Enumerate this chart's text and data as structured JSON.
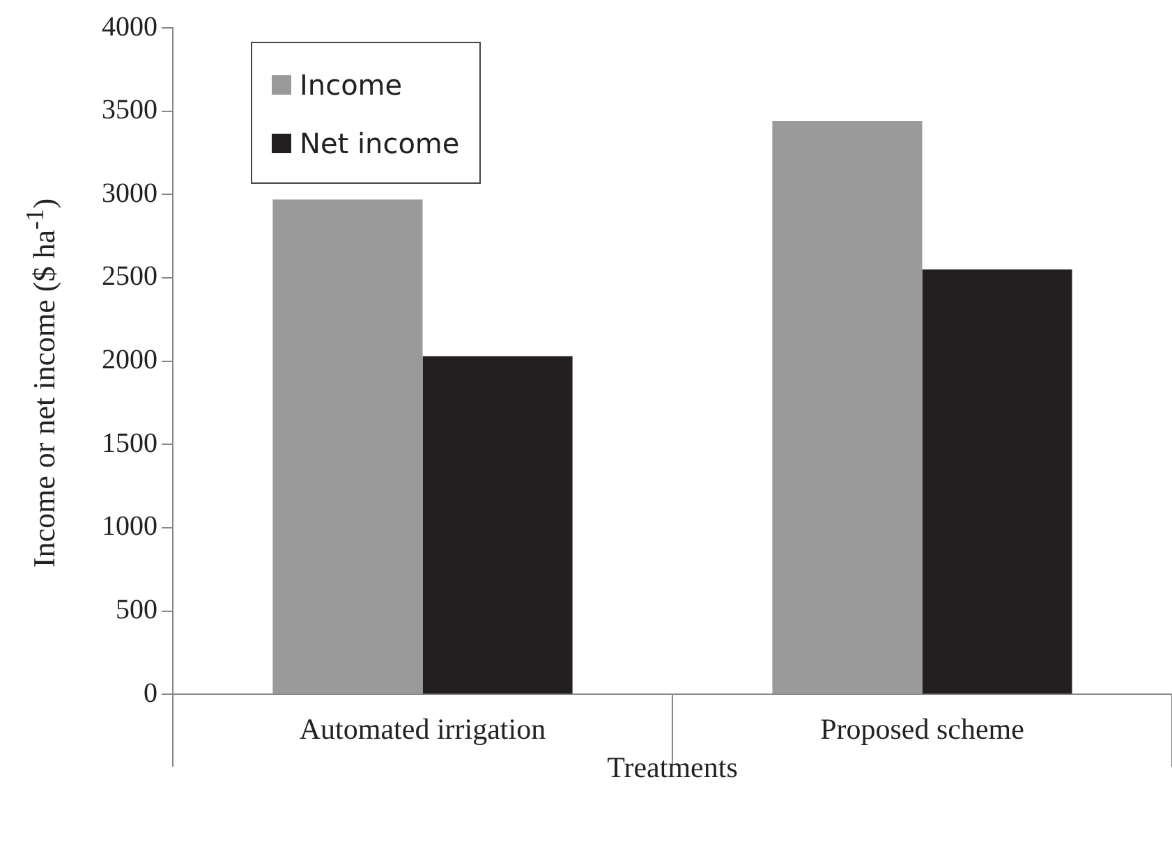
{
  "chart_data": {
    "type": "bar",
    "xlabel": "Treatments",
    "ylabel": "Income or net income ($ ha$^{-1}$)",
    "categories": [
      "Automated irrigation",
      "Proposed scheme"
    ],
    "series": [
      {
        "name": "Income",
        "color": "#9a9a9a",
        "values": [
          2970,
          3440
        ]
      },
      {
        "name": "Net income",
        "color": "#231f20",
        "values": [
          2030,
          2550
        ]
      }
    ],
    "ylim": [
      0,
      4000
    ],
    "yticks": [
      0,
      500,
      1000,
      1500,
      2000,
      2500,
      3000,
      3500,
      4000
    ],
    "grid": false,
    "legend": "top left"
  }
}
